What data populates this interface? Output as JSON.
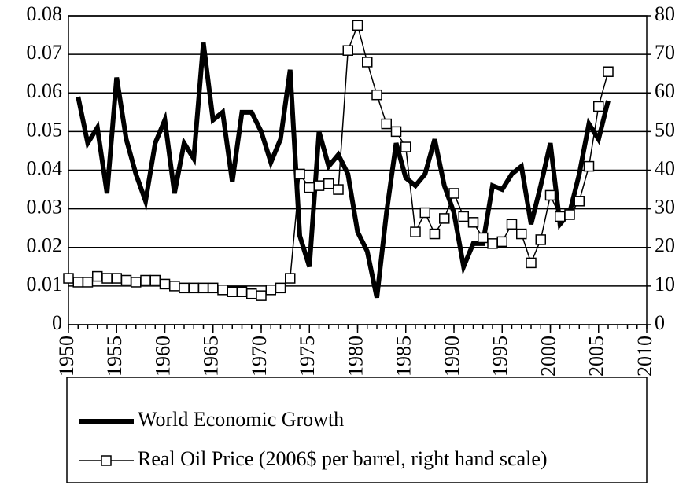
{
  "chart_data": {
    "type": "line",
    "x": [
      1950,
      1951,
      1952,
      1953,
      1954,
      1955,
      1956,
      1957,
      1958,
      1959,
      1960,
      1961,
      1962,
      1963,
      1964,
      1965,
      1966,
      1967,
      1968,
      1969,
      1970,
      1971,
      1972,
      1973,
      1974,
      1975,
      1976,
      1977,
      1978,
      1979,
      1980,
      1981,
      1982,
      1983,
      1984,
      1985,
      1986,
      1987,
      1988,
      1989,
      1990,
      1991,
      1992,
      1993,
      1994,
      1995,
      1996,
      1997,
      1998,
      1999,
      2000,
      2001,
      2002,
      2003,
      2004,
      2005,
      2006
    ],
    "series": [
      {
        "name": "World Economic Growth",
        "color": "#000000",
        "values": [
          null,
          0.059,
          0.047,
          0.051,
          0.034,
          0.064,
          0.048,
          0.039,
          0.032,
          0.047,
          0.053,
          0.034,
          0.047,
          0.043,
          0.073,
          0.053,
          0.055,
          0.037,
          0.055,
          0.055,
          0.05,
          0.042,
          0.048,
          0.066,
          0.023,
          0.015,
          0.05,
          0.041,
          0.044,
          0.039,
          0.024,
          0.019,
          0.007,
          0.029,
          0.047,
          0.038,
          0.036,
          0.039,
          0.048,
          0.036,
          0.029,
          0.015,
          0.021,
          0.021,
          0.036,
          0.035,
          0.039,
          0.041,
          0.026,
          0.036,
          0.047,
          0.026,
          0.029,
          0.039,
          0.052,
          0.048,
          0.058
        ]
      },
      {
        "name": "Real Oil Price (2006$ per barrel, right hand scale)",
        "color": "#000000",
        "axis": "y2",
        "values": [
          12,
          11,
          11,
          12.5,
          12,
          12,
          11.5,
          11,
          11.5,
          11.5,
          10.5,
          10,
          9.5,
          9.5,
          9.5,
          9.5,
          9,
          8.5,
          8.5,
          8,
          7.5,
          9,
          9.5,
          12,
          39,
          35.5,
          36,
          36.5,
          35,
          71,
          77.5,
          68,
          59.5,
          52,
          50,
          46,
          24,
          29,
          23.5,
          27.5,
          34,
          28,
          26.5,
          22.5,
          21,
          21.5,
          26,
          23.5,
          16,
          22,
          33.5,
          28,
          28.5,
          32,
          41,
          56.5,
          65.5
        ]
      }
    ],
    "xlim": [
      1950,
      2010
    ],
    "xticks": [
      1950,
      1955,
      1960,
      1965,
      1970,
      1975,
      1980,
      1985,
      1990,
      1995,
      2000,
      2005,
      2010
    ],
    "ylim": [
      0,
      0.08
    ],
    "yticks": [
      0,
      0.01,
      0.02,
      0.03,
      0.04,
      0.05,
      0.06,
      0.07,
      0.08
    ],
    "y2lim": [
      0,
      80
    ],
    "y2ticks": [
      0,
      10,
      20,
      30,
      40,
      50,
      60,
      70,
      80
    ],
    "grid": true,
    "legend": "bottom"
  }
}
